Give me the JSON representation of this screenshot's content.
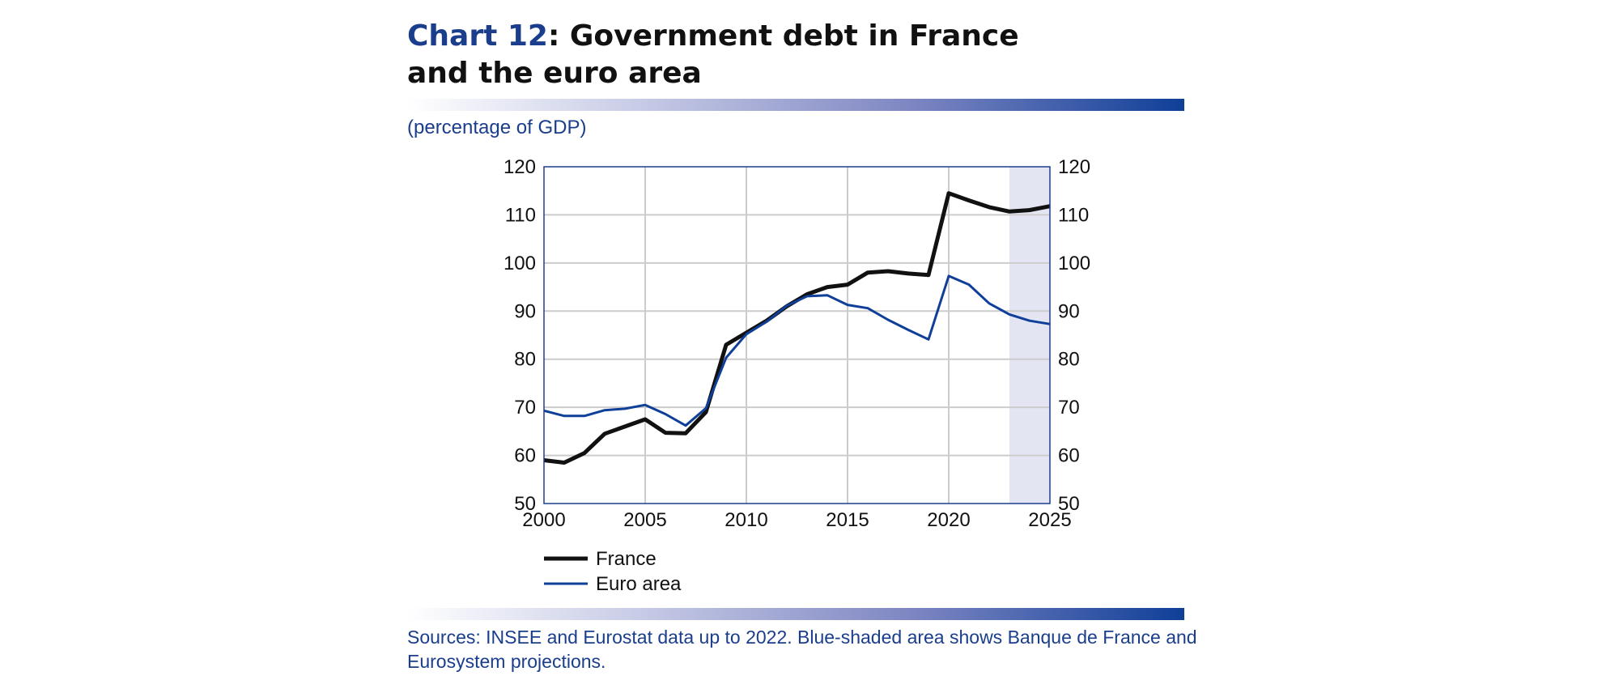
{
  "header": {
    "chart_number": "Chart 12",
    "title_rest": ": Government debt in France\nand the euro area"
  },
  "units_label": "(percentage of GDP)",
  "source_note": "Sources: INSEE and Eurostat data up to 2022. Blue-shaded area shows Banque de  France and Eurosystem projections.",
  "colors": {
    "brand_blue": "#1a3e8c",
    "france_line": "#111111",
    "euro_line": "#0f3f98",
    "projection_shade": "#e4e5f2",
    "grid": "#cccccc"
  },
  "chart_data": {
    "type": "line",
    "title": "Government debt in France and the euro area",
    "ylabel": "(percentage of GDP)",
    "xlabel": "",
    "xlim": [
      2000,
      2025
    ],
    "ylim": [
      50,
      120
    ],
    "x_ticks": [
      2000,
      2005,
      2010,
      2015,
      2020,
      2025
    ],
    "y_ticks": [
      50,
      60,
      70,
      80,
      90,
      100,
      110,
      120
    ],
    "grid": true,
    "dual_y_axis": true,
    "projection_shade": [
      2023,
      2025
    ],
    "legend_position": "bottom-left",
    "x": [
      2000,
      2001,
      2002,
      2003,
      2004,
      2005,
      2006,
      2007,
      2008,
      2009,
      2010,
      2011,
      2012,
      2013,
      2014,
      2015,
      2016,
      2017,
      2018,
      2019,
      2020,
      2021,
      2022,
      2023,
      2024,
      2025
    ],
    "series": [
      {
        "name": "France",
        "values": [
          59.0,
          58.5,
          60.5,
          64.5,
          66.0,
          67.5,
          64.7,
          64.6,
          69.0,
          83.0,
          85.5,
          88.0,
          91.0,
          93.5,
          95.0,
          95.5,
          98.0,
          98.3,
          97.8,
          97.5,
          114.5,
          113.0,
          111.6,
          110.7,
          111.0,
          111.8
        ],
        "color": "#111111",
        "line_width": 5
      },
      {
        "name": "Euro area",
        "values": [
          69.3,
          68.2,
          68.2,
          69.4,
          69.7,
          70.5,
          68.6,
          66.2,
          69.8,
          80.3,
          85.2,
          87.8,
          91.1,
          93.1,
          93.3,
          91.3,
          90.6,
          88.2,
          86.1,
          84.1,
          97.3,
          95.5,
          91.6,
          89.3,
          88.0,
          87.3
        ],
        "color": "#0f3f98",
        "line_width": 3
      }
    ]
  }
}
